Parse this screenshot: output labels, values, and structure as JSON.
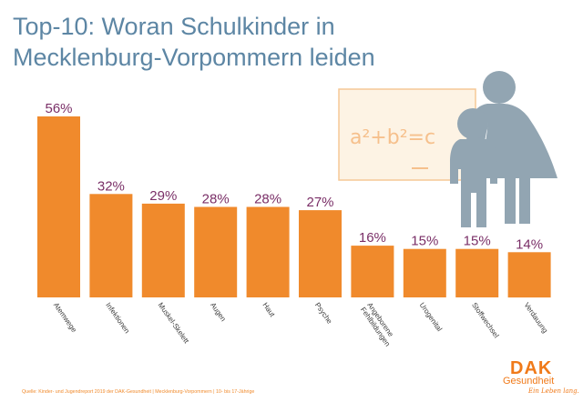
{
  "title": {
    "line1": "Top-10: Woran Schulkinder in",
    "line2": "Mecklenburg-Vorpommern leiden"
  },
  "chart_data": {
    "type": "bar",
    "categories": [
      "Atemwege",
      "Infektionen",
      "Muskel-Skelett",
      "Augen",
      "Haut",
      "Psyche",
      "Angeborene Fehlbildungen",
      "Urogenital",
      "Stoffwechsel",
      "Verdauung"
    ],
    "values": [
      56,
      32,
      29,
      28,
      28,
      27,
      16,
      15,
      15,
      14
    ],
    "value_labels": [
      "56%",
      "32%",
      "29%",
      "28%",
      "28%",
      "27%",
      "16%",
      "15%",
      "15%",
      "14%"
    ],
    "unit": "%",
    "ylim": [
      0,
      56
    ],
    "grid": false,
    "legend": "none",
    "bar_color": "#f08a2c",
    "label_color": "#7a2f67"
  },
  "illustration": {
    "formula": "a²+b²=c",
    "board_color": "#fdf3e4",
    "figure_color": "#92a5b2"
  },
  "source": "Quelle: Kinder- und Jugendreport 2019 der DAK-Gesundheit | Mecklenburg-Vorpommern | 10- bis 17-Jährige",
  "logo": {
    "brand": "DAK",
    "sub": "Gesundheit",
    "slogan": "Ein Leben lang."
  },
  "colors": {
    "title": "#5d86a4",
    "accent": "#f08a2c"
  }
}
